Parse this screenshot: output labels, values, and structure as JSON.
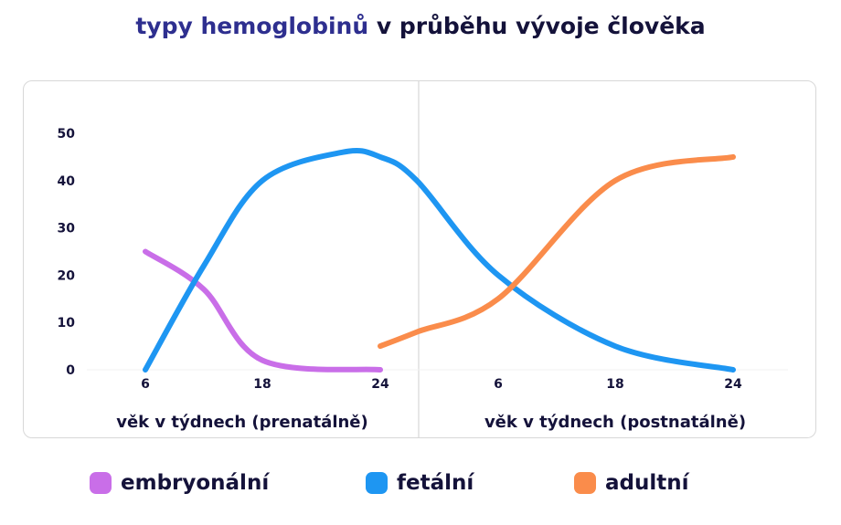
{
  "title": {
    "accent": "typy hemoglobinů",
    "rest": "v průběhu vývoje člověka"
  },
  "colors": {
    "embryonal": "#c96ee8",
    "fetal": "#1e96f2",
    "adult": "#fa8c4b",
    "text": "#14123a",
    "accent": "#2e2f8f"
  },
  "chart_data": {
    "type": "line",
    "title": "typy hemoglobinů v průběhu vývoje člověka",
    "ylim": [
      0,
      50
    ],
    "y_ticks": [
      0,
      10,
      20,
      30,
      40,
      50
    ],
    "grid": false,
    "legend_position": "bottom",
    "panels": [
      {
        "xlabel": "věk v týdnech (prenatálně)",
        "x_ticks": [
          "6",
          "18",
          "24"
        ]
      },
      {
        "xlabel": "věk v týdnech (postnatálně)",
        "x_ticks": [
          "6",
          "18",
          "24"
        ]
      }
    ],
    "series": [
      {
        "name": "embryonální",
        "color_key": "embryonal",
        "points": [
          [
            "prenatal 6",
            25
          ],
          [
            "prenatal 12",
            17
          ],
          [
            "prenatal 18",
            2
          ],
          [
            "prenatal 24",
            0
          ]
        ]
      },
      {
        "name": "fetální",
        "color_key": "fetal",
        "points": [
          [
            "prenatal 6",
            0
          ],
          [
            "prenatal 12",
            22
          ],
          [
            "prenatal 18",
            40
          ],
          [
            "prenatal 22",
            46
          ],
          [
            "prenatal 24",
            45
          ],
          [
            "birth",
            40
          ],
          [
            "postnatal 6",
            20
          ],
          [
            "postnatal 18",
            5
          ],
          [
            "postnatal 24",
            0
          ]
        ]
      },
      {
        "name": "adultní",
        "color_key": "adult",
        "points": [
          [
            "prenatal 24",
            5
          ],
          [
            "birth",
            8
          ],
          [
            "postnatal 6",
            15
          ],
          [
            "postnatal 18",
            40
          ],
          [
            "postnatal 24",
            45
          ]
        ]
      }
    ]
  },
  "legend": [
    {
      "label": "embryonální",
      "color_key": "embryonal"
    },
    {
      "label": "fetální",
      "color_key": "fetal"
    },
    {
      "label": "adultní",
      "color_key": "adult"
    }
  ]
}
